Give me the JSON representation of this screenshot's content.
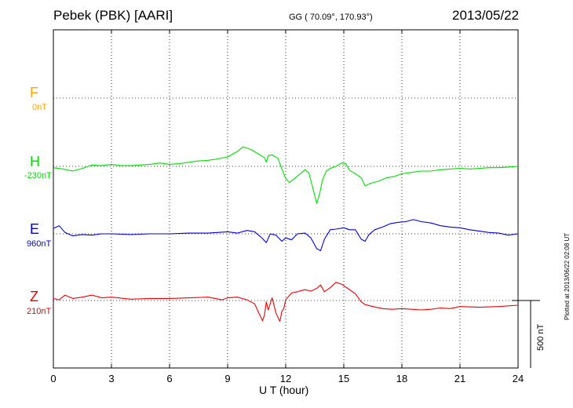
{
  "header": {
    "station": "Pebek (PBK)  [AARI]",
    "coords": "GG ( 70.09°, 170.93°)",
    "date": "2013/05/22"
  },
  "footer": {
    "xlabel": "U T (hour)",
    "plotted": "Plotted at 2013/06/22 02:08 UT"
  },
  "scale": {
    "label": "500 nT",
    "nT": 500
  },
  "colors": {
    "F": "#ffa500",
    "H": "#00dd00",
    "E": "#0000dd",
    "Z": "#ee0000"
  },
  "chart_data": {
    "type": "line",
    "xlabel": "U T (hour)",
    "xlim": [
      0,
      24
    ],
    "x_ticks": [
      0,
      3,
      6,
      9,
      12,
      15,
      18,
      21,
      24
    ],
    "grid": true,
    "series": [
      {
        "name": "F",
        "baseline_label": "0nT",
        "baseline": 0,
        "x": [],
        "values": []
      },
      {
        "name": "H",
        "baseline_label": "-230nT",
        "baseline": -230,
        "x": [
          0,
          0.5,
          1,
          1.5,
          2,
          2.5,
          3,
          3.5,
          4,
          4.5,
          5,
          5.5,
          6,
          6.5,
          7,
          7.5,
          8,
          8.5,
          9,
          9.5,
          9.8,
          10.2,
          10.6,
          10.9,
          11.0,
          11.1,
          11.3,
          11.6,
          11.8,
          12.0,
          12.2,
          12.5,
          12.8,
          13.0,
          13.2,
          13.4,
          13.6,
          13.75,
          13.9,
          14.1,
          14.3,
          14.6,
          14.9,
          15.1,
          15.3,
          15.6,
          15.9,
          16.1,
          16.4,
          16.8,
          17.2,
          17.6,
          18.0,
          18.5,
          19.0,
          19.5,
          20.0,
          20.5,
          21.0,
          21.5,
          22.0,
          22.5,
          23.0,
          23.5,
          24
        ],
        "values": [
          -240,
          -250,
          -265,
          -245,
          -220,
          -225,
          -215,
          -225,
          -225,
          -220,
          -215,
          -205,
          -215,
          -210,
          -200,
          -190,
          -185,
          -175,
          -160,
          -120,
          -85,
          -105,
          -140,
          -165,
          -200,
          -150,
          -145,
          -170,
          -250,
          -320,
          -350,
          -315,
          -280,
          -255,
          -280,
          -390,
          -505,
          -435,
          -330,
          -265,
          -245,
          -230,
          -205,
          -210,
          -260,
          -285,
          -315,
          -375,
          -355,
          -340,
          -315,
          -305,
          -285,
          -275,
          -265,
          -265,
          -255,
          -250,
          -245,
          -250,
          -245,
          -240,
          -240,
          -235,
          -230
        ]
      },
      {
        "name": "E",
        "baseline_label": "960nT",
        "baseline": 960,
        "x": [
          0,
          0.3,
          0.6,
          1,
          1.5,
          2,
          2.5,
          3,
          4,
          5,
          6,
          7,
          8,
          9,
          9.5,
          10,
          10.4,
          10.8,
          11.0,
          11.2,
          11.5,
          11.8,
          12.0,
          12.3,
          12.6,
          13.0,
          13.3,
          13.6,
          13.8,
          14.0,
          14.3,
          14.6,
          15.0,
          15.3,
          15.6,
          15.9,
          16.1,
          16.3,
          16.6,
          17.0,
          17.4,
          17.8,
          18.2,
          18.6,
          19.0,
          19.5,
          20.0,
          20.5,
          21.0,
          21.5,
          22.0,
          22.5,
          23.0,
          23.5,
          24
        ],
        "values": [
          1000,
          1020,
          970,
          945,
          955,
          950,
          960,
          960,
          955,
          960,
          960,
          965,
          965,
          975,
          965,
          985,
          975,
          925,
          895,
          960,
          950,
          905,
          930,
          915,
          960,
          965,
          930,
          850,
          835,
          920,
          990,
          995,
          1005,
          990,
          990,
          920,
          905,
          955,
          990,
          1010,
          1035,
          1045,
          1050,
          1065,
          1050,
          1040,
          1020,
          1010,
          1005,
          990,
          980,
          970,
          965,
          950,
          960
        ]
      },
      {
        "name": "Z",
        "baseline_label": "210nT",
        "baseline": 210,
        "x": [
          0,
          0.3,
          0.6,
          1,
          1.5,
          2,
          2.5,
          3,
          4,
          5,
          6,
          7,
          8,
          8.7,
          9,
          9.5,
          10,
          10.4,
          10.6,
          10.8,
          10.9,
          11.0,
          11.1,
          11.3,
          11.5,
          11.7,
          11.8,
          11.9,
          12.0,
          12.3,
          12.6,
          13.0,
          13.3,
          13.6,
          13.8,
          14.0,
          14.3,
          14.6,
          14.9,
          15.2,
          15.6,
          15.9,
          16.1,
          16.5,
          17.0,
          17.5,
          18.0,
          18.5,
          19.0,
          19.5,
          20.0,
          20.5,
          21.0,
          22.0,
          23.0,
          24
        ],
        "values": [
          225,
          215,
          250,
          225,
          235,
          250,
          230,
          235,
          220,
          225,
          225,
          230,
          235,
          215,
          230,
          235,
          215,
          185,
          120,
          60,
          100,
          200,
          140,
          230,
          115,
          55,
          130,
          150,
          215,
          265,
          275,
          290,
          280,
          300,
          325,
          275,
          305,
          345,
          330,
          300,
          260,
          200,
          180,
          165,
          150,
          145,
          150,
          145,
          140,
          145,
          155,
          150,
          165,
          160,
          165,
          175
        ]
      }
    ]
  }
}
